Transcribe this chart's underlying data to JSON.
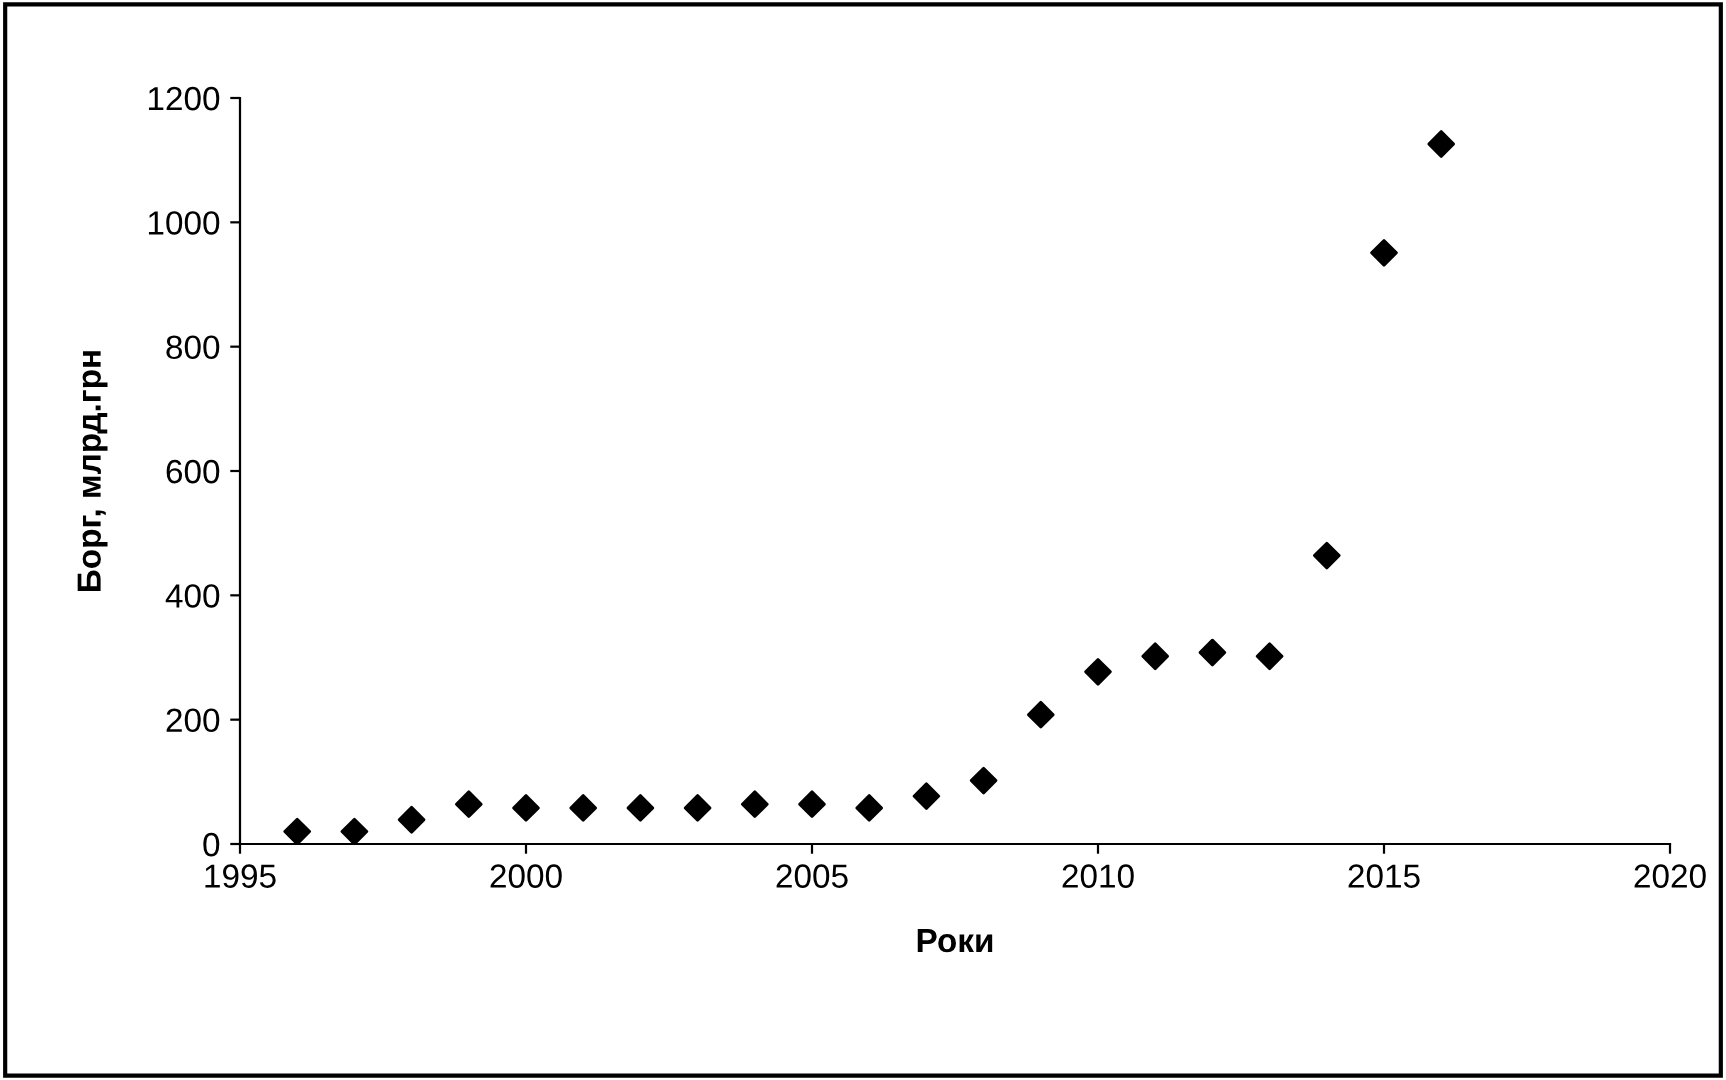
{
  "chart_data": {
    "type": "scatter",
    "xlabel": "Роки",
    "ylabel": "Борг, млрд.грн",
    "x": [
      1996,
      1997,
      1998,
      1999,
      2000,
      2001,
      2002,
      2003,
      2004,
      2005,
      2006,
      2007,
      2008,
      2009,
      2010,
      2011,
      2012,
      2013,
      2014,
      2015,
      2016
    ],
    "series": [
      {
        "color": "#000000",
        "values": [
          20,
          20,
          39,
          64,
          58,
          58,
          58,
          58,
          64,
          64,
          58,
          77,
          102,
          208,
          277,
          302,
          308,
          302,
          464,
          951,
          1126
        ]
      }
    ],
    "xlim": [
      1995,
      2020
    ],
    "xticks": [
      1995,
      2000,
      2005,
      2010,
      2015,
      2020
    ],
    "ylim": [
      0,
      1200
    ],
    "yticks": [
      0,
      200,
      400,
      600,
      800,
      1000,
      1200
    ],
    "marker": "diamond",
    "grid": false,
    "legend": false
  }
}
